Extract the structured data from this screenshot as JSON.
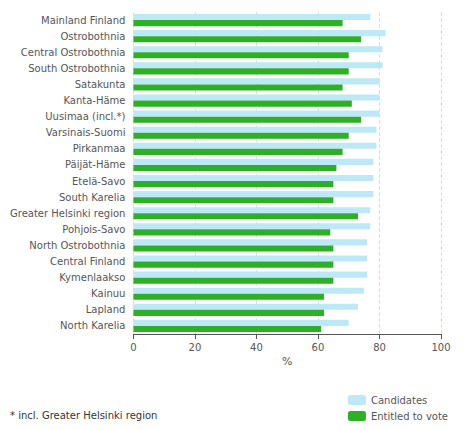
{
  "chart_data": {
    "type": "bar",
    "orientation": "horizontal",
    "categories": [
      "Mainland Finland",
      "Ostrobothnia",
      "Central Ostrobothnia",
      "South Ostrobothnia",
      "Satakunta",
      "Kanta-Häme",
      "Uusimaa (incl.*)",
      "Varsinais-Suomi",
      "Pirkanmaa",
      "Päijät-Häme",
      "Etelä-Savo",
      "South Karelia",
      "Greater Helsinki region",
      "Pohjois-Savo",
      "North Ostrobothnia",
      "Central Finland",
      "Kymenlaakso",
      "Kainuu",
      "Lapland",
      "North Karelia"
    ],
    "series": [
      {
        "name": "Candidates",
        "color": "#bde8f5",
        "values": [
          77,
          82,
          81,
          81,
          80,
          80,
          80,
          79,
          79,
          78,
          78,
          78,
          77,
          77,
          76,
          76,
          76,
          75,
          73,
          70
        ]
      },
      {
        "name": "Entitled to vote",
        "color": "#2db025",
        "values": [
          68,
          74,
          70,
          70,
          68,
          71,
          74,
          70,
          68,
          66,
          65,
          65,
          73,
          64,
          65,
          65,
          65,
          62,
          62,
          61
        ]
      }
    ],
    "xlabel": "%",
    "xlim": [
      0,
      100
    ],
    "xticks": [
      0,
      20,
      40,
      60,
      80,
      100
    ],
    "grid": true,
    "legend": "lower right",
    "annotations": [
      "* incl. Greater Helsinki region"
    ]
  }
}
